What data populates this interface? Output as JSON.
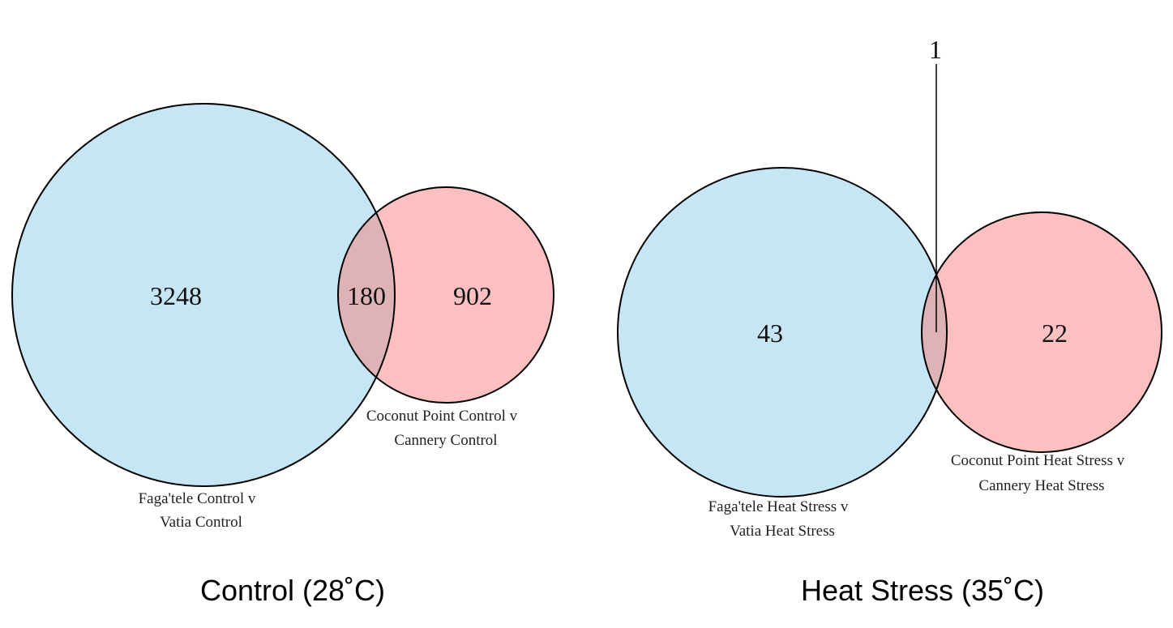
{
  "colors": {
    "set_a_fill": "#c6e6f6",
    "set_b_fill": "#fbc0bf",
    "overlap_fill": "#ddb3b7",
    "stroke": "#000000"
  },
  "diagrams": [
    {
      "caption": "Control (28˚C)",
      "set_a": {
        "label_line1": "Faga'tele Control v",
        "label_line2": "Vatia Control",
        "only_count": "3248"
      },
      "set_b": {
        "label_line1": "Coconut Point Control v",
        "label_line2": "Cannery Control",
        "only_count": "902"
      },
      "intersection": "180"
    },
    {
      "caption": "Heat Stress (35˚C)",
      "set_a": {
        "label_line1": "Faga'tele Heat Stress v",
        "label_line2": "Vatia Heat Stress",
        "only_count": "43"
      },
      "set_b": {
        "label_line1": "Coconut Point Heat Stress v",
        "label_line2": "Cannery Heat Stress",
        "only_count": "22"
      },
      "intersection": "1"
    }
  ]
}
